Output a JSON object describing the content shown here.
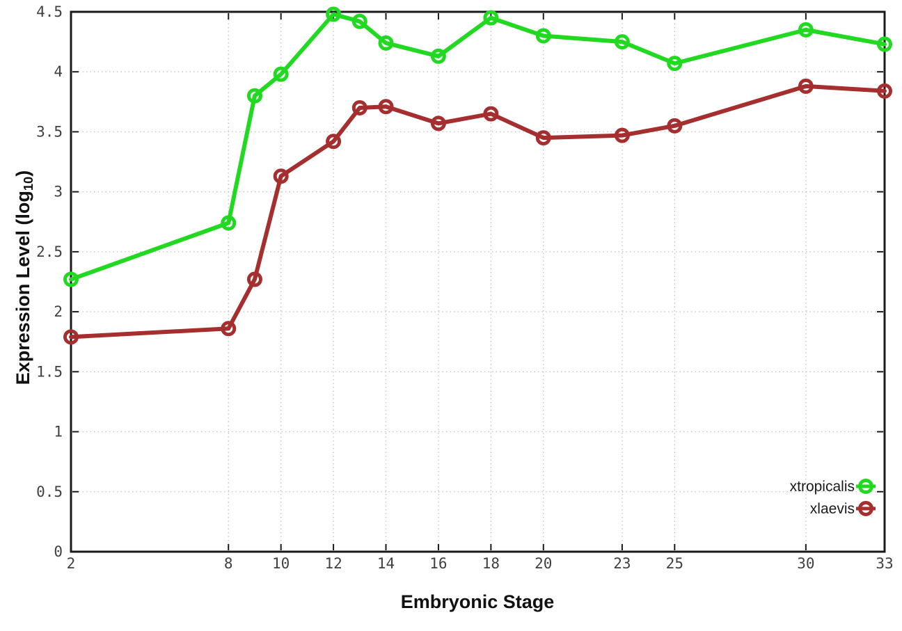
{
  "chart_data": {
    "type": "line",
    "title": "",
    "xlabel": "Embryonic Stage",
    "ylabel": "Expression Level (log10)",
    "ylabel_prefix": "Expression Level (log",
    "ylabel_sub": "10",
    "ylabel_suffix": ")",
    "x": [
      2,
      8,
      9,
      10,
      12,
      13,
      14,
      16,
      18,
      20,
      23,
      25,
      30,
      33
    ],
    "series": [
      {
        "name": "xtropicalis",
        "color": "#22d922",
        "marker": "open-circle",
        "values": [
          2.27,
          2.74,
          3.8,
          3.98,
          4.48,
          4.42,
          4.24,
          4.13,
          4.45,
          4.3,
          4.25,
          4.07,
          4.35,
          4.23
        ]
      },
      {
        "name": "xlaevis",
        "color": "#a52f2f",
        "marker": "open-circle",
        "values": [
          1.79,
          1.86,
          2.27,
          3.13,
          3.42,
          3.7,
          3.71,
          3.57,
          3.65,
          3.45,
          3.47,
          3.55,
          3.88,
          3.84
        ]
      }
    ],
    "xlim": [
      2,
      33
    ],
    "ylim": [
      0,
      4.5
    ],
    "xtick_values": [
      2,
      8,
      10,
      12,
      14,
      16,
      18,
      20,
      23,
      25,
      30,
      33
    ],
    "xtick_labels": [
      "2",
      "8",
      "10",
      "12",
      "14",
      "16",
      "18",
      "20",
      "23",
      "25",
      "30",
      "33"
    ],
    "ytick_values": [
      0,
      0.5,
      1,
      1.5,
      2,
      2.5,
      3,
      3.5,
      4,
      4.5
    ],
    "ytick_labels": [
      "0",
      "0.5",
      "1",
      "1.5",
      "2",
      "2.5",
      "3",
      "3.5",
      "4",
      "4.5"
    ],
    "grid": true,
    "grid_style": "dotted",
    "legend_position": "bottom-right",
    "colors": {
      "background": "#ffffff",
      "axis": "#1a1a1a",
      "grid": "#c4c4c4",
      "tick_text": "#404040",
      "legend_text": "#1a1a1a"
    }
  }
}
